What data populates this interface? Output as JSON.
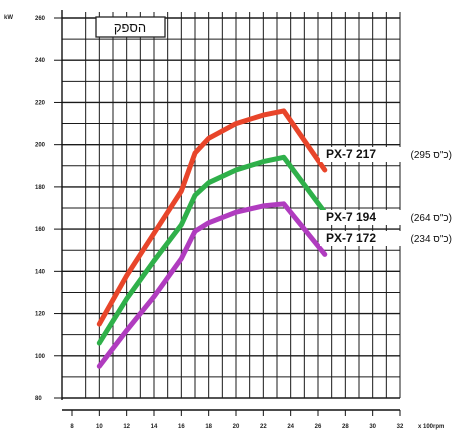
{
  "chart_data": {
    "type": "line",
    "title": "הספק",
    "ylabel": "kW",
    "xlabel": "x 100rpm",
    "x_ticks": [
      8,
      10,
      12,
      14,
      16,
      18,
      20,
      22,
      24,
      26,
      28,
      30,
      32
    ],
    "y_ticks": [
      80,
      100,
      120,
      140,
      160,
      180,
      200,
      220,
      240,
      260
    ],
    "xlim": [
      8,
      32
    ],
    "ylim": [
      80,
      260
    ],
    "grid": true,
    "series": [
      {
        "name": "PX-7 217",
        "note": "(295 כ\"ס)",
        "color": "#e8452a",
        "points": [
          [
            10,
            115
          ],
          [
            12,
            138
          ],
          [
            14,
            158
          ],
          [
            16,
            178
          ],
          [
            17,
            196
          ],
          [
            18,
            203
          ],
          [
            20,
            210
          ],
          [
            22,
            214
          ],
          [
            23.5,
            216
          ],
          [
            25,
            202
          ],
          [
            26.5,
            188
          ]
        ]
      },
      {
        "name": "PX-7 194",
        "note": "(264 כ\"ס)",
        "color": "#2fb04a",
        "points": [
          [
            10,
            106
          ],
          [
            12,
            127
          ],
          [
            14,
            145
          ],
          [
            16,
            162
          ],
          [
            17,
            176
          ],
          [
            18,
            182
          ],
          [
            20,
            188
          ],
          [
            22,
            192
          ],
          [
            23.5,
            194
          ],
          [
            25,
            181
          ],
          [
            26.5,
            168
          ]
        ]
      },
      {
        "name": "PX-7 172",
        "note": "(234 כ\"ס)",
        "color": "#b03cbf",
        "points": [
          [
            10,
            95
          ],
          [
            12,
            112
          ],
          [
            14,
            128
          ],
          [
            16,
            146
          ],
          [
            17,
            159
          ],
          [
            18,
            163
          ],
          [
            20,
            168
          ],
          [
            22,
            171
          ],
          [
            23.5,
            172
          ],
          [
            25,
            160
          ],
          [
            26.5,
            148
          ]
        ]
      }
    ]
  }
}
